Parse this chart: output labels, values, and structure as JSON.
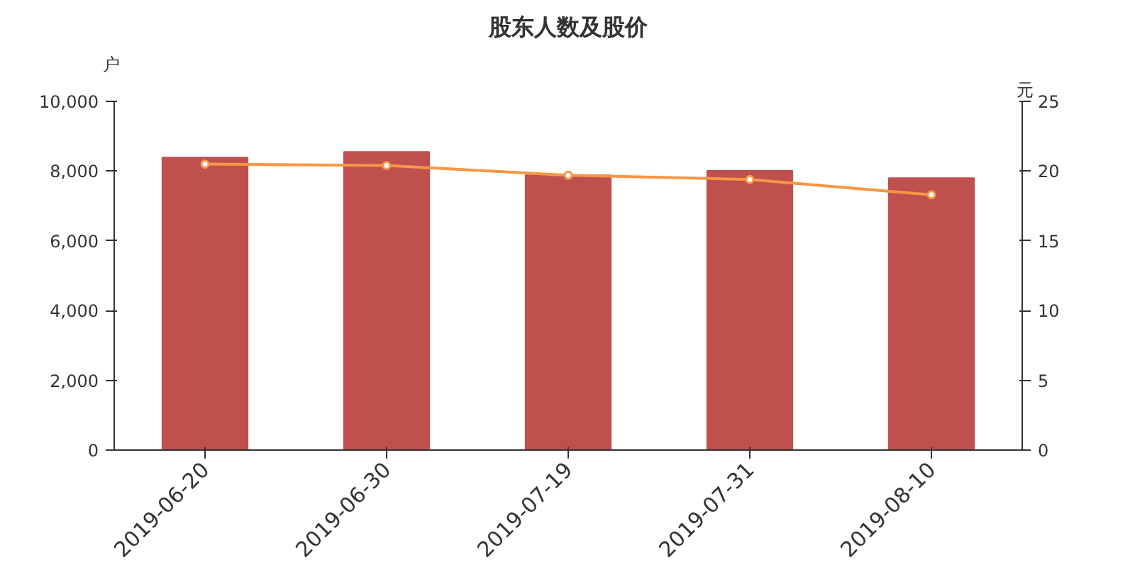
{
  "chart_data": {
    "type": "bar",
    "title": "股东人数及股价",
    "ylabel": "户",
    "y2label": "元",
    "categories": [
      "2019-06-20",
      "2019-06-30",
      "2019-07-19",
      "2019-07-31",
      "2019-08-10"
    ],
    "series": [
      {
        "color": "#c0504d",
        "values": [
          8390,
          8550,
          7880,
          8010,
          7800
        ]
      },
      {
        "type": "line",
        "axis": "y2",
        "color": "#f79646",
        "marker": "circle",
        "values": [
          20.5,
          20.4,
          19.7,
          19.4,
          18.3
        ]
      }
    ],
    "ylim": [
      0,
      10000
    ],
    "yticks": [
      {
        "value": 0,
        "label": "0"
      },
      {
        "value": 2000,
        "label": "2,000"
      },
      {
        "value": 4000,
        "label": "4,000"
      },
      {
        "value": 6000,
        "label": "6,000"
      },
      {
        "value": 8000,
        "label": "8,000"
      },
      {
        "value": 10000,
        "label": "10,000"
      }
    ],
    "y2lim": [
      0,
      25
    ],
    "y2ticks": [
      0,
      5,
      10,
      15,
      20,
      25
    ],
    "grid": false
  }
}
